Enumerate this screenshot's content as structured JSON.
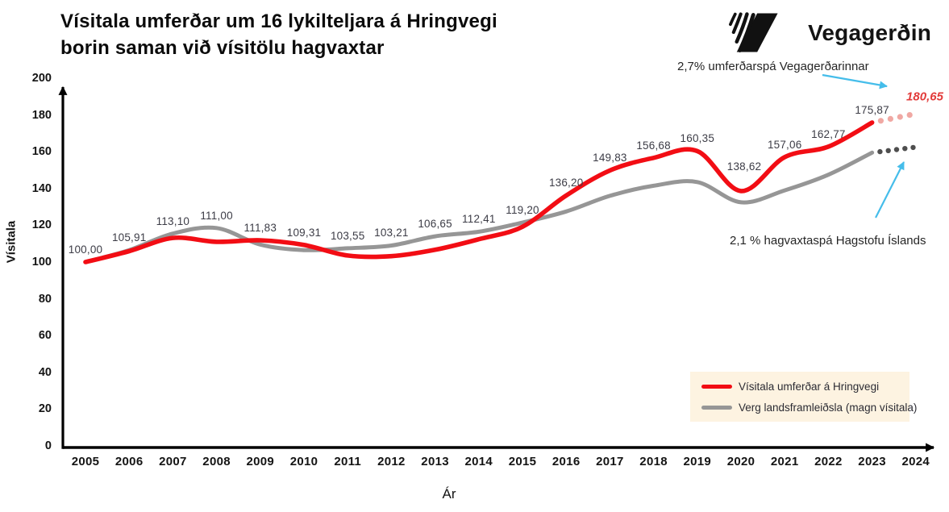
{
  "header": {
    "title_line1": "Vísitala umferðar um 16 lykilteljara á Hringvegi",
    "title_line2": "borin saman við vísitölu hagvaxtar",
    "brand_name": "Vegagerðin"
  },
  "axes": {
    "ylabel": "Vísitala",
    "xlabel": "Ár",
    "yticks": [
      "0",
      "20",
      "40",
      "60",
      "80",
      "100",
      "120",
      "140",
      "160",
      "180",
      "200"
    ],
    "xticks": [
      "2005",
      "2006",
      "2007",
      "2008",
      "2009",
      "2010",
      "2011",
      "2012",
      "2013",
      "2014",
      "2015",
      "2016",
      "2017",
      "2018",
      "2019",
      "2020",
      "2021",
      "2022",
      "2023",
      "2024"
    ]
  },
  "chart_data": {
    "type": "line",
    "title": "Vísitala umferðar um 16 lykilteljara á Hringvegi borin saman við vísitölu hagvaxtar",
    "xlabel": "Ár",
    "ylabel": "Vísitala",
    "ylim": [
      0,
      200
    ],
    "ytick_step": 20,
    "grid": false,
    "legend_position": "lower right",
    "years": [
      2005,
      2006,
      2007,
      2008,
      2009,
      2010,
      2011,
      2012,
      2013,
      2014,
      2015,
      2016,
      2017,
      2018,
      2019,
      2020,
      2021,
      2022,
      2023
    ],
    "forecast_year": 2024,
    "series": [
      {
        "name": "Vísitala umferðar á Hringvegi",
        "color": "#f20d14",
        "values": [
          100.0,
          105.91,
          113.1,
          111.0,
          111.83,
          109.31,
          103.55,
          103.21,
          106.65,
          112.41,
          119.2,
          136.2,
          149.83,
          156.68,
          160.35,
          138.62,
          157.06,
          162.77,
          175.87
        ],
        "point_labels": [
          "100,00",
          "105,91",
          "113,10",
          "111,00",
          "111,83",
          "109,31",
          "103,55",
          "103,21",
          "106,65",
          "112,41",
          "119,20",
          "136,20",
          "149,83",
          "156,68",
          "160,35",
          "138,62",
          "157,06",
          "162,77",
          "175,87"
        ],
        "forecast_value": 180.65,
        "forecast_label": "180,65",
        "forecast_dot_color": "#f0a8a3"
      },
      {
        "name": "Verg landsframleiðsla (magn vísitala)",
        "color": "#969696",
        "values": [
          100,
          106.5,
          115.5,
          118.5,
          109.5,
          106.5,
          107.5,
          109,
          114,
          116.5,
          121.5,
          127.5,
          136,
          141.5,
          143.5,
          132.5,
          139,
          147.5,
          159.5
        ],
        "point_labels": [],
        "forecast_value": 162.5,
        "forecast_label": "",
        "forecast_dot_color": "#4e4e4e"
      }
    ]
  },
  "annotations": {
    "traffic_forecast_text": "2,7% umferðarspá Vegagerðarinnar",
    "gdp_forecast_text": "2,1 % hagvaxtaspá Hagstofu Íslands"
  },
  "legend": {
    "bg": "#fdf3e1",
    "items": [
      {
        "label": "Vísitala umferðar á Hringvegi",
        "color": "#f20d14"
      },
      {
        "label": "Verg landsframleiðsla (magn vísitala)",
        "color": "#969696"
      }
    ]
  },
  "colors": {
    "axis": "#000000",
    "arrow": "#45bdea",
    "forecast_value_label": "#e23b3a",
    "data_label": "#3c3c46"
  }
}
